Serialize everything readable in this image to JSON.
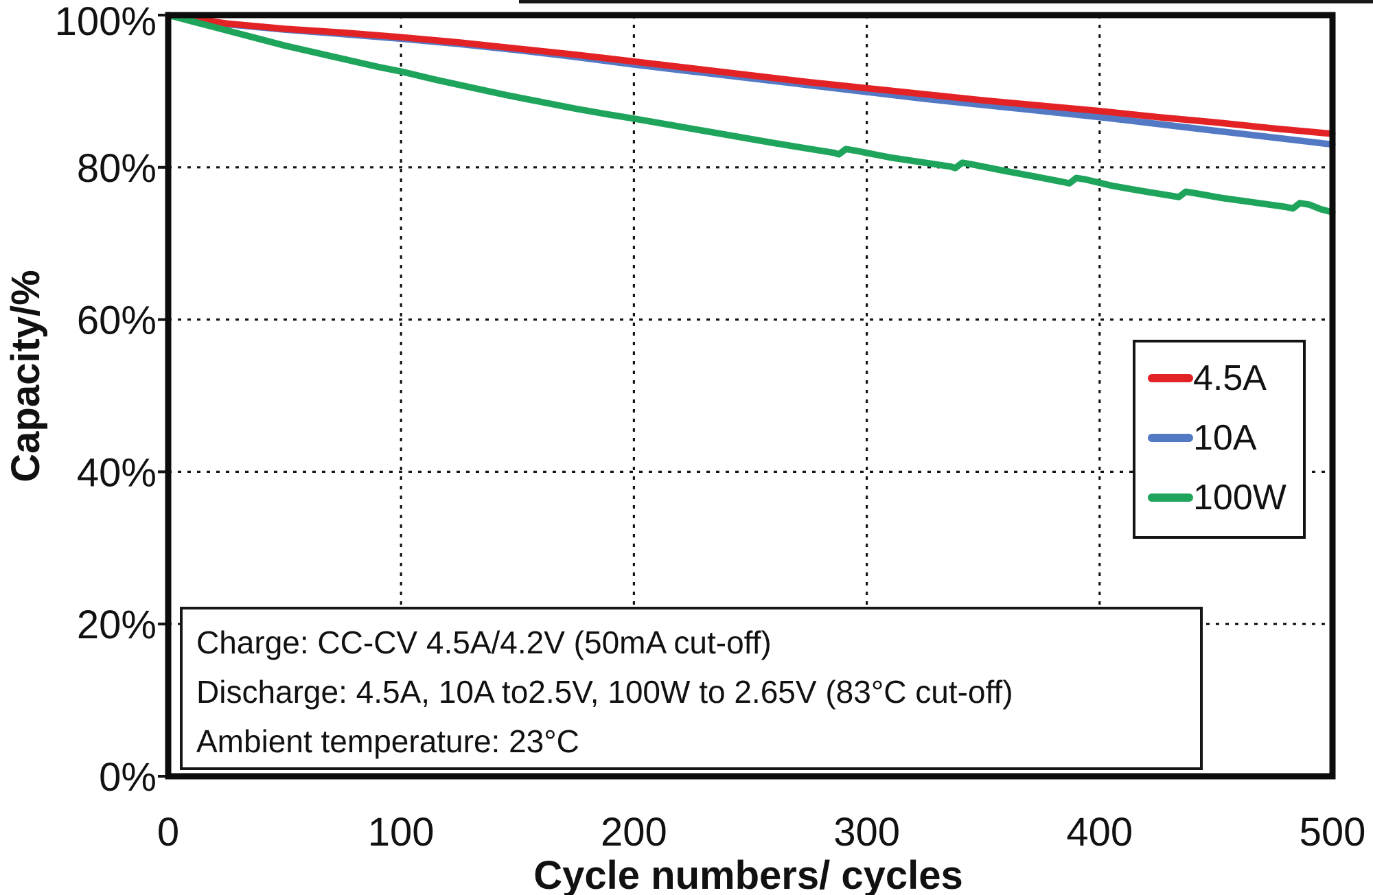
{
  "chart_data": {
    "type": "line",
    "title": "",
    "xlabel": "Cycle numbers/ cycles",
    "ylabel": "Capacity/%",
    "xlim": [
      0,
      500
    ],
    "ylim": [
      0,
      100
    ],
    "grid": "dashed-black",
    "legend_position": "middle-right",
    "x_ticks": [
      {
        "value": 0,
        "label": "0"
      },
      {
        "value": 100,
        "label": "100"
      },
      {
        "value": 200,
        "label": "200"
      },
      {
        "value": 300,
        "label": "300"
      },
      {
        "value": 400,
        "label": "400"
      },
      {
        "value": 500,
        "label": "500"
      }
    ],
    "y_ticks": [
      {
        "value": 0,
        "label": "0%"
      },
      {
        "value": 20,
        "label": "20%"
      },
      {
        "value": 40,
        "label": "40%"
      },
      {
        "value": 60,
        "label": "60%"
      },
      {
        "value": 80,
        "label": "80%"
      },
      {
        "value": 100,
        "label": "100%"
      }
    ],
    "series": [
      {
        "name": "10A",
        "color": "#5379c5",
        "points": [
          [
            0,
            100
          ],
          [
            25,
            98.8
          ],
          [
            50,
            98.1
          ],
          [
            75,
            97.5
          ],
          [
            100,
            96.9
          ],
          [
            125,
            96.2
          ],
          [
            150,
            95.4
          ],
          [
            175,
            94.5
          ],
          [
            200,
            93.5
          ],
          [
            225,
            92.6
          ],
          [
            250,
            91.7
          ],
          [
            275,
            90.8
          ],
          [
            300,
            89.9
          ],
          [
            325,
            89.0
          ],
          [
            350,
            88.2
          ],
          [
            375,
            87.4
          ],
          [
            400,
            86.6
          ],
          [
            425,
            85.7
          ],
          [
            450,
            84.8
          ],
          [
            475,
            83.9
          ],
          [
            500,
            83.0
          ]
        ]
      },
      {
        "name": "4.5A",
        "color": "#e32226",
        "points": [
          [
            0,
            100
          ],
          [
            25,
            98.9
          ],
          [
            50,
            98.2
          ],
          [
            75,
            97.7
          ],
          [
            100,
            97.1
          ],
          [
            125,
            96.4
          ],
          [
            150,
            95.6
          ],
          [
            175,
            94.8
          ],
          [
            200,
            93.9
          ],
          [
            225,
            93.0
          ],
          [
            250,
            92.1
          ],
          [
            275,
            91.2
          ],
          [
            300,
            90.4
          ],
          [
            325,
            89.6
          ],
          [
            350,
            88.8
          ],
          [
            375,
            88.1
          ],
          [
            400,
            87.4
          ],
          [
            425,
            86.6
          ],
          [
            450,
            85.9
          ],
          [
            475,
            85.1
          ],
          [
            500,
            84.4
          ]
        ]
      },
      {
        "name": "100W",
        "color": "#1ea45b",
        "points": [
          [
            0,
            100
          ],
          [
            10,
            99.2
          ],
          [
            20,
            98.4
          ],
          [
            30,
            97.6
          ],
          [
            40,
            96.8
          ],
          [
            50,
            96.0
          ],
          [
            60,
            95.3
          ],
          [
            70,
            94.6
          ],
          [
            80,
            93.9
          ],
          [
            90,
            93.2
          ],
          [
            100,
            92.6
          ],
          [
            115,
            91.5
          ],
          [
            130,
            90.5
          ],
          [
            145,
            89.5
          ],
          [
            160,
            88.6
          ],
          [
            175,
            87.7
          ],
          [
            190,
            86.9
          ],
          [
            200,
            86.4
          ],
          [
            215,
            85.6
          ],
          [
            230,
            84.8
          ],
          [
            245,
            84.0
          ],
          [
            260,
            83.2
          ],
          [
            272,
            82.6
          ],
          [
            286,
            81.9
          ],
          [
            288,
            81.7
          ],
          [
            291,
            82.4
          ],
          [
            295,
            82.2
          ],
          [
            310,
            81.3
          ],
          [
            325,
            80.6
          ],
          [
            336,
            80.1
          ],
          [
            338,
            79.9
          ],
          [
            341,
            80.6
          ],
          [
            345,
            80.4
          ],
          [
            358,
            79.6
          ],
          [
            372,
            78.8
          ],
          [
            384,
            78.1
          ],
          [
            387,
            77.9
          ],
          [
            390,
            78.6
          ],
          [
            394,
            78.4
          ],
          [
            405,
            77.6
          ],
          [
            418,
            76.9
          ],
          [
            430,
            76.3
          ],
          [
            434,
            76.1
          ],
          [
            437,
            76.8
          ],
          [
            441,
            76.6
          ],
          [
            452,
            76.0
          ],
          [
            466,
            75.4
          ],
          [
            480,
            74.8
          ],
          [
            483,
            74.6
          ],
          [
            486,
            75.3
          ],
          [
            490,
            75.1
          ],
          [
            495,
            74.5
          ],
          [
            500,
            74.1
          ]
        ]
      }
    ],
    "legend_order": [
      1,
      0,
      2
    ],
    "annotation": {
      "lines": [
        "Charge: CC-CV 4.5A/4.2V (50mA cut-off)",
        "Discharge: 4.5A, 10A to2.5V, 100W to 2.65V (83°C cut-off)",
        "Ambient temperature: 23°C"
      ]
    }
  }
}
